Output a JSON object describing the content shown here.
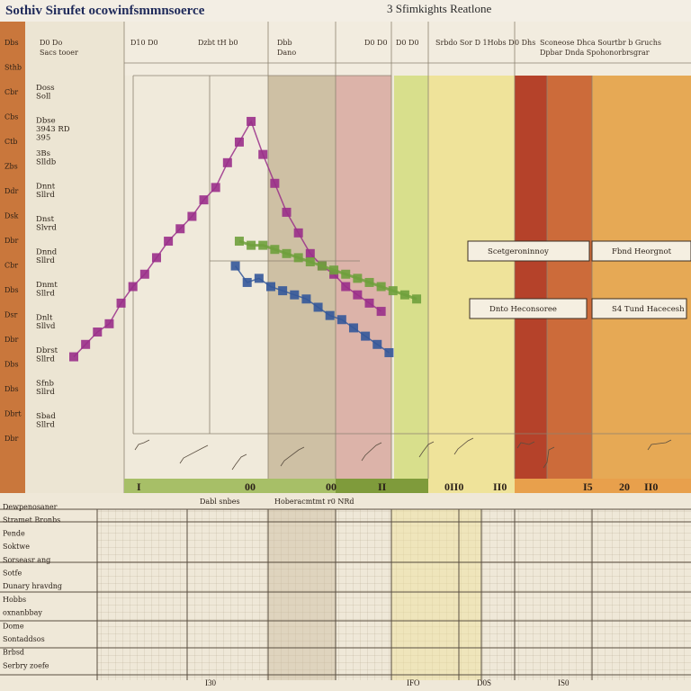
{
  "header": {
    "title_left": "Sothiv Sirufet ocowinfsmmnsoerce",
    "title_right": "3 Sfimkights Reatlone"
  },
  "colors": {
    "background": "#efe8d8",
    "sidebar": "#c9773c",
    "purple_series": "#9a2f8a",
    "green_series": "#6fa03c",
    "blue_series": "#34589a",
    "band_gray": "#c8b89a",
    "band_rose": "#d8a9a0",
    "band_olive": "#d8df8c",
    "band_yellow": "#efe39a",
    "band_red": "#b5422a",
    "band_orange": "#e6a955"
  },
  "sidebar": {
    "labels": [
      "Dbs",
      "Sthb",
      "Cbr",
      "Cbs",
      "Ctb",
      "Zbs",
      "Ddr",
      "Dsk",
      "Dbr",
      "Cbr",
      "Dbs",
      "Dsr",
      "Dbr",
      "Dbs",
      "Dbs",
      "Dbrt",
      "Dbr"
    ]
  },
  "yaxis": {
    "labels": [
      "Doss\nSoll",
      "Dbse\n3943 RD\n395",
      "3Bs\nSlldb",
      "Dnnt\nSllrd",
      "Dnst\nSlvrd",
      "Dnnd\nSllrd",
      "Dnmt\nSllrd",
      "Dnlt\nSllvd",
      "Dbrst\nSllrd",
      "Sfnb\nSllrd",
      "Sbad\nSllrd"
    ]
  },
  "top_labels": [
    "D0 Do",
    "D10 D0",
    "Dzbt tH b0",
    "Dbb",
    "D0 D0",
    "D0 D0",
    "Srbdo Sor D 1Hobs D",
    "0 Dhs",
    "Sconeose Dhca Sourtbr b Gruchs"
  ],
  "band_subtitles": [
    "Sacs tooer",
    "Dano",
    "Dpbar Dnda Spohonorbrsgrar"
  ],
  "callouts": [
    "Scetgeroninnoy",
    "Fbnd Heorgnot",
    "Dnto Heconsoree",
    "S4 Tund Hacecesh"
  ],
  "band_values": [
    "I",
    "00",
    "00",
    "II",
    "0II0",
    "II0",
    "I5",
    "20",
    "II0"
  ],
  "table": {
    "header": [
      "Dabl snbes",
      "Hoberacmtmt r0 NRd"
    ],
    "row_labels": [
      "Dewpenosaner",
      "Stramet Bronbs",
      "Pende",
      "Soktwe",
      "Sorseasr ang",
      "Sotfe",
      "Dunary hravdng",
      "Hobbs",
      "oxnanbbay",
      "Dome",
      "Sontaddsos",
      "Brbsd",
      "Serbry zoefe"
    ],
    "footer": [
      "I30",
      "IFO",
      "D0S",
      "IS0"
    ]
  },
  "chart_data": {
    "type": "line",
    "title": "Sothiv Sirufet ocowinfsmmnsoerce",
    "xlabel": "",
    "ylabel": "",
    "xlim": [
      0,
      100
    ],
    "ylim": [
      0,
      100
    ],
    "grid": true,
    "series": [
      {
        "x": [
          0,
          3,
          6,
          9,
          12,
          15,
          18,
          21,
          24,
          27,
          30,
          33,
          36,
          39,
          42,
          45,
          48,
          51,
          54,
          57,
          60,
          63,
          66,
          69,
          72,
          75,
          78
        ],
        "values": [
          16,
          19,
          22,
          24,
          29,
          33,
          36,
          40,
          44,
          47,
          50,
          54,
          57,
          63,
          68,
          73,
          65,
          58,
          51,
          46,
          41,
          38,
          36,
          33,
          31,
          29,
          27
        ]
      },
      {
        "x": [
          41,
          44,
          47,
          50,
          53,
          56,
          59,
          62,
          65,
          68,
          71,
          74,
          77,
          80
        ],
        "values": [
          38,
          34,
          35,
          33,
          32,
          31,
          30,
          28,
          26,
          25,
          23,
          21,
          19,
          17
        ]
      },
      {
        "x": [
          42,
          45,
          48,
          51,
          54,
          57,
          60,
          63,
          66,
          69,
          72,
          75,
          78,
          81,
          84,
          87
        ],
        "values": [
          44,
          43,
          43,
          42,
          41,
          40,
          39,
          38,
          37,
          36,
          35,
          34,
          33,
          32,
          31,
          30
        ]
      }
    ]
  }
}
